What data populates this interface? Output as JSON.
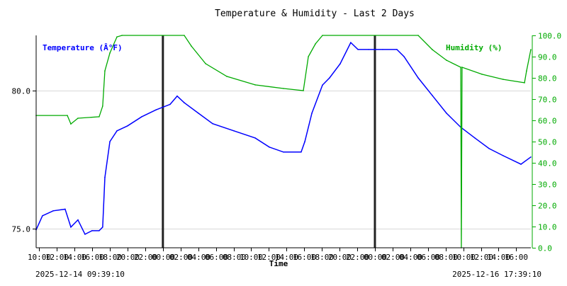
{
  "chart_data": {
    "type": "line",
    "title": "Temperature & Humidity - Last 2 Days",
    "xlabel": "Time",
    "start_label": "2025-12-14 09:39:10",
    "end_label": "2025-12-16 17:39:10",
    "xlim": [
      "2025-12-14 09:39:10",
      "2025-12-16 17:39:10"
    ],
    "x_tick_labels": [
      "10:00",
      "12:00",
      "14:00",
      "16:00",
      "18:00",
      "20:00",
      "22:00",
      "00:00",
      "02:00",
      "04:00",
      "06:00",
      "08:00",
      "10:00",
      "12:00",
      "14:00",
      "16:00",
      "18:00",
      "20:00",
      "22:00",
      "00:00",
      "02:00",
      "04:00",
      "06:00",
      "08:00",
      "10:00",
      "12:00",
      "14:00",
      "16:00"
    ],
    "x_tick_first": "2025-12-14 10:00",
    "x_tick_step_hours": 2,
    "midnight_markers": [
      "2025-12-15 00:00",
      "2025-12-16 00:00"
    ],
    "y_left": {
      "label": "Temperature (Â°F)",
      "ylim": [
        74.3,
        82.0
      ],
      "ticks": [
        "75.0",
        "80.0"
      ],
      "color": "#0000ff"
    },
    "y_right": {
      "label": "Humidity (%)",
      "ylim": [
        0,
        100
      ],
      "ticks": [
        "0.0",
        "10.0",
        "20.0",
        "30.0",
        "40.0",
        "50.0",
        "60.0",
        "70.0",
        "80.0",
        "90.0",
        "100.0"
      ],
      "color": "#00aa00"
    },
    "grid": "horizontal at left-axis ticks",
    "series": [
      {
        "name": "Temperature (Â°F)",
        "axis": "left",
        "color": "#0000ff",
        "points": [
          [
            "2025-12-14 09:39",
            74.95
          ],
          [
            "2025-12-14 10:22",
            75.46
          ],
          [
            "2025-12-14 11:35",
            75.64
          ],
          [
            "2025-12-14 12:56",
            75.7
          ],
          [
            "2025-12-14 13:35",
            75.05
          ],
          [
            "2025-12-14 14:23",
            75.31
          ],
          [
            "2025-12-14 15:11",
            74.79
          ],
          [
            "2025-12-14 15:59",
            74.92
          ],
          [
            "2025-12-14 16:47",
            74.92
          ],
          [
            "2025-12-14 17:11",
            75.05
          ],
          [
            "2025-12-14 17:26",
            76.85
          ],
          [
            "2025-12-14 18:00",
            78.15
          ],
          [
            "2025-12-14 18:48",
            78.54
          ],
          [
            "2025-12-14 20:00",
            78.72
          ],
          [
            "2025-12-14 21:36",
            79.05
          ],
          [
            "2025-12-14 23:13",
            79.3
          ],
          [
            "2025-12-15 00:49",
            79.5
          ],
          [
            "2025-12-15 01:37",
            79.8
          ],
          [
            "2025-12-15 02:25",
            79.56
          ],
          [
            "2025-12-15 04:01",
            79.18
          ],
          [
            "2025-12-15 05:38",
            78.8
          ],
          [
            "2025-12-15 08:02",
            78.54
          ],
          [
            "2025-12-15 10:27",
            78.28
          ],
          [
            "2025-12-15 12:03",
            77.95
          ],
          [
            "2025-12-15 13:39",
            77.77
          ],
          [
            "2025-12-15 15:39",
            77.77
          ],
          [
            "2025-12-15 16:04",
            78.15
          ],
          [
            "2025-12-15 16:52",
            79.18
          ],
          [
            "2025-12-15 18:04",
            80.2
          ],
          [
            "2025-12-15 18:52",
            80.46
          ],
          [
            "2025-12-15 20:04",
            80.97
          ],
          [
            "2025-12-15 21:16",
            81.74
          ],
          [
            "2025-12-15 22:05",
            81.49
          ],
          [
            "2025-12-15 23:17",
            81.49
          ],
          [
            "2025-12-16 00:53",
            81.49
          ],
          [
            "2025-12-16 02:29",
            81.49
          ],
          [
            "2025-12-16 03:18",
            81.23
          ],
          [
            "2025-12-16 04:54",
            80.46
          ],
          [
            "2025-12-16 06:30",
            79.82
          ],
          [
            "2025-12-16 08:06",
            79.18
          ],
          [
            "2025-12-16 09:43",
            78.67
          ],
          [
            "2025-12-16 11:19",
            78.28
          ],
          [
            "2025-12-16 12:55",
            77.9
          ],
          [
            "2025-12-16 14:31",
            77.64
          ],
          [
            "2025-12-16 16:32",
            77.33
          ],
          [
            "2025-12-16 17:39",
            77.59
          ]
        ]
      },
      {
        "name": "Humidity (%)",
        "axis": "right",
        "color": "#00aa00",
        "points": [
          [
            "2025-12-14 09:39",
            62.3
          ],
          [
            "2025-12-14 13:11",
            62.3
          ],
          [
            "2025-12-14 13:35",
            58.3
          ],
          [
            "2025-12-14 14:23",
            61.0
          ],
          [
            "2025-12-14 16:47",
            61.7
          ],
          [
            "2025-12-14 17:11",
            66.7
          ],
          [
            "2025-12-14 17:26",
            83.3
          ],
          [
            "2025-12-14 18:00",
            91.7
          ],
          [
            "2025-12-14 18:48",
            99.3
          ],
          [
            "2025-12-14 19:22",
            100
          ],
          [
            "2025-12-15 02:25",
            100
          ],
          [
            "2025-12-15 03:13",
            95
          ],
          [
            "2025-12-15 04:50",
            86.7
          ],
          [
            "2025-12-15 07:14",
            80.7
          ],
          [
            "2025-12-15 10:27",
            76.7
          ],
          [
            "2025-12-15 13:39",
            75
          ],
          [
            "2025-12-15 15:54",
            74
          ],
          [
            "2025-12-15 16:28",
            90
          ],
          [
            "2025-12-15 17:16",
            96
          ],
          [
            "2025-12-15 18:04",
            100
          ],
          [
            "2025-12-16 04:54",
            100
          ],
          [
            "2025-12-16 06:30",
            93.3
          ],
          [
            "2025-12-16 08:06",
            88.3
          ],
          [
            "2025-12-16 09:43",
            85
          ],
          [
            "2025-12-16 09:47",
            0
          ],
          [
            "2025-12-16 09:52",
            85
          ],
          [
            "2025-12-16 12:07",
            81.7
          ],
          [
            "2025-12-16 14:31",
            79.3
          ],
          [
            "2025-12-16 16:56",
            77.7
          ],
          [
            "2025-12-16 17:10",
            83.3
          ],
          [
            "2025-12-16 17:39",
            93.3
          ]
        ]
      }
    ]
  }
}
